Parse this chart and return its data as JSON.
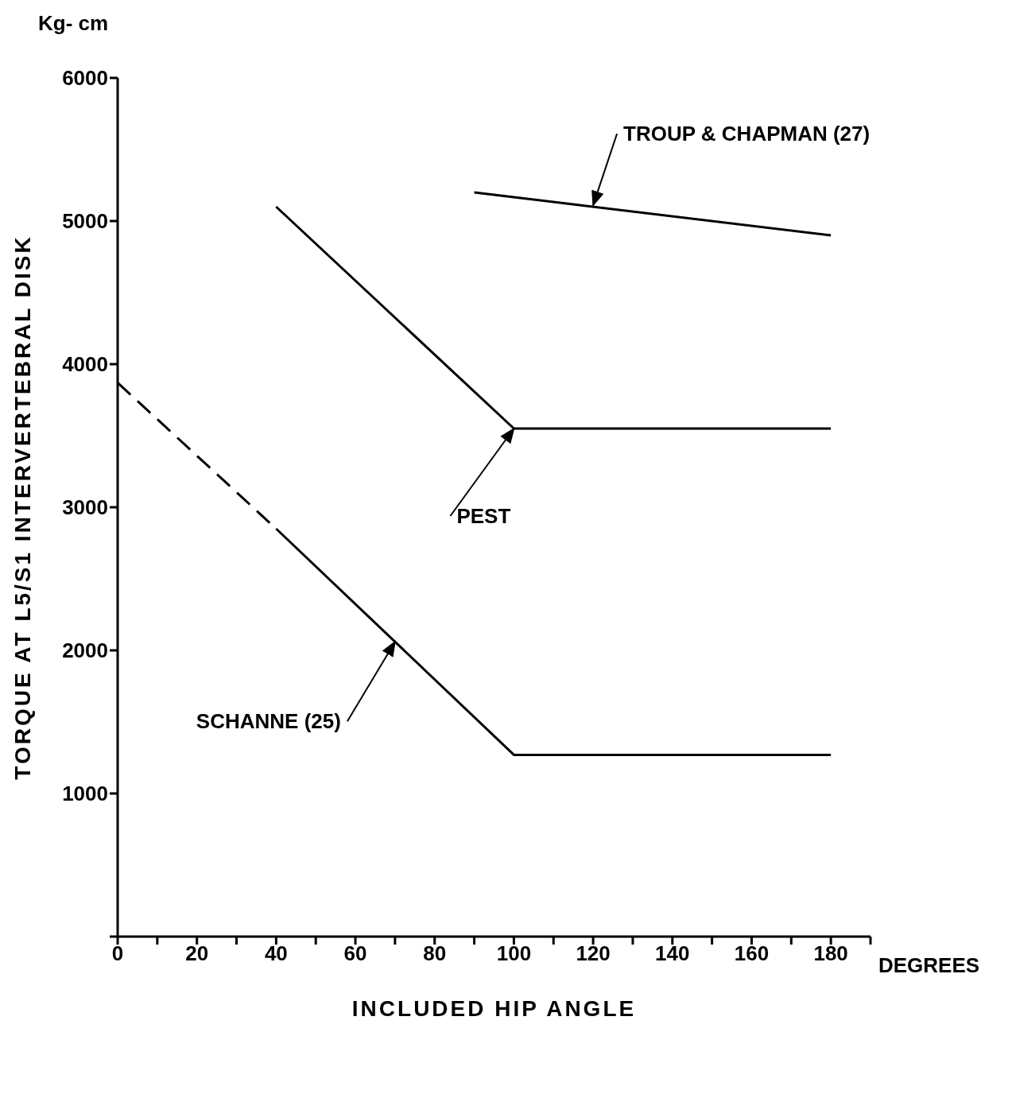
{
  "chart_data": {
    "type": "line",
    "xlabel": "INCLUDED HIP ANGLE",
    "ylabel": "TORQUE AT L5/S1 INTERVERTEBRAL DISK",
    "xlim": [
      0,
      190
    ],
    "xticks": [
      0,
      {
        "value": 10,
        "label": null
      },
      20,
      {
        "value": 30,
        "label": null
      },
      40,
      {
        "value": 50,
        "label": null
      },
      60,
      {
        "value": 70,
        "label": null
      },
      80,
      {
        "value": 90,
        "label": null
      },
      100,
      {
        "value": 110,
        "label": null
      },
      120,
      {
        "value": 130,
        "label": null
      },
      140,
      {
        "value": 150,
        "label": null
      },
      160,
      {
        "value": 170,
        "label": null
      },
      180,
      {
        "value": 190,
        "label": null
      }
    ],
    "ylim": [
      0,
      6000
    ],
    "yticks": [
      {
        "value": 0,
        "label": null
      },
      1000,
      2000,
      3000,
      4000,
      5000,
      6000
    ],
    "marker": "none",
    "series": [
      {
        "color": "#000000",
        "x": [
          90,
          180
        ],
        "values": [
          5200,
          4900
        ]
      },
      {
        "color": "#000000",
        "x": [
          40,
          100,
          180
        ],
        "values": [
          5100,
          3550,
          3550
        ]
      },
      {
        "color": "#000000",
        "x": [
          0,
          40
        ],
        "values": [
          3870,
          2850
        ],
        "line_style": "dashed"
      },
      {
        "color": "#000000",
        "x": [
          40,
          100,
          180
        ],
        "values": [
          2850,
          1270,
          1270
        ]
      }
    ],
    "annotations": [
      "Kg- cm",
      "DEGREES",
      {
        "text": "TROUP & CHAPMAN (27)",
        "x": 120,
        "y": 5110
      },
      {
        "text": "PEST",
        "x": 100,
        "y": 3550
      },
      {
        "text": "SCHANNE (25)",
        "x": 70,
        "y": 2060
      }
    ]
  }
}
